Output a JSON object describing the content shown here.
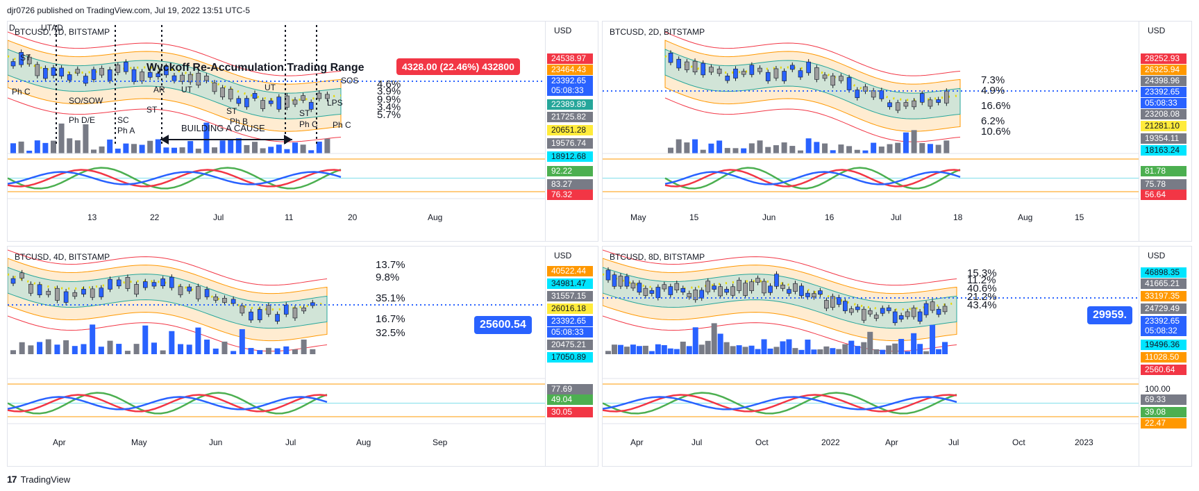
{
  "header": {
    "publish_line": "djr0726 published on TradingView.com, Jul 19, 2022 13:51 UTC-5"
  },
  "footer": {
    "brand": "TradingView",
    "logo_glyph": "17"
  },
  "axis_currency": "USD",
  "colors": {
    "blue": "#2962ff",
    "red": "#f23645",
    "green": "#00c853",
    "orange": "#ff9800",
    "yellow": "#ffeb3b",
    "teal": "#26c6da",
    "purple": "#7b1fa2"
  },
  "panels": {
    "p1": {
      "symbol": "BTCUSD, 1D, BITSTAMP",
      "price_labels": [
        {
          "v": "24538.97",
          "c": "#f23645"
        },
        {
          "v": "23464.43",
          "c": "#ff9800"
        },
        {
          "v": "23392.65",
          "c": "#2962ff"
        },
        {
          "v": "05:08:33",
          "c": "#2962ff"
        },
        {
          "v": "22389.89",
          "c": "#26a69a"
        },
        {
          "v": "21725.82",
          "c": "#787b86"
        },
        {
          "v": "20651.28",
          "c": "#ffeb3b"
        },
        {
          "v": "19576.74",
          "c": "#787b86"
        },
        {
          "v": "18912.68",
          "c": "#00e5ff"
        }
      ],
      "osc_labels": [
        {
          "v": "92.22",
          "c": "#4caf50"
        },
        {
          "v": "83.27",
          "c": "#787b86"
        },
        {
          "v": "76.32",
          "c": "#f23645"
        }
      ],
      "time_labels": [
        "13",
        "22",
        "Jul",
        "11",
        "20",
        "Aug"
      ],
      "annotations": [
        "D",
        "UTAD",
        "ST",
        "Ph C",
        "SO/SOW",
        "Ph D/E",
        "SC",
        "Ph A",
        "ST",
        "AR",
        "UT",
        "ST",
        "Ph B",
        "UT",
        "ST",
        "Ph C",
        "LPS",
        "SOS",
        "Ph C",
        "BUILDING A CAUSE"
      ],
      "title_note": "Wyckoff Re-Accumulation Trading Range",
      "badge": "4328.00 (22.46%) 432800",
      "pcts": [
        "4.6%",
        "3.9%",
        "9.9%",
        "3.4%",
        "5.7%"
      ]
    },
    "p2": {
      "symbol": "BTCUSD, 2D, BITSTAMP",
      "price_labels": [
        {
          "v": "28252.93",
          "c": "#f23645"
        },
        {
          "v": "26325.94",
          "c": "#ff9800"
        },
        {
          "v": "24398.96",
          "c": "#787b86"
        },
        {
          "v": "23392.65",
          "c": "#2962ff"
        },
        {
          "v": "05:08:33",
          "c": "#2962ff"
        },
        {
          "v": "23208.08",
          "c": "#787b86"
        },
        {
          "v": "21281.10",
          "c": "#ffeb3b"
        },
        {
          "v": "19354.11",
          "c": "#787b86"
        },
        {
          "v": "18163.24",
          "c": "#00e5ff"
        }
      ],
      "osc_labels": [
        {
          "v": "81.78",
          "c": "#4caf50"
        },
        {
          "v": "75.78",
          "c": "#787b86"
        },
        {
          "v": "56.64",
          "c": "#f23645"
        }
      ],
      "time_labels": [
        "May",
        "15",
        "Jun",
        "16",
        "Jul",
        "18",
        "Aug",
        "15"
      ],
      "pcts": [
        "7.3%",
        "4.9%",
        "16.6%",
        "6.2%",
        "10.6%"
      ]
    },
    "p3": {
      "symbol": "BTCUSD, 4D, BITSTAMP",
      "price_labels": [
        {
          "v": "40522.44",
          "c": "#ff9800"
        },
        {
          "v": "34981.47",
          "c": "#00e5ff"
        },
        {
          "v": "31557.15",
          "c": "#787b86"
        },
        {
          "v": "26016.18",
          "c": "#ffeb3b"
        },
        {
          "v": "23392.65",
          "c": "#2962ff"
        },
        {
          "v": "05:08:33",
          "c": "#2962ff"
        },
        {
          "v": "20475.21",
          "c": "#787b86"
        },
        {
          "v": "17050.89",
          "c": "#00e5ff"
        }
      ],
      "osc_labels": [
        {
          "v": "77.69",
          "c": "#787b86"
        },
        {
          "v": "49.04",
          "c": "#4caf50"
        },
        {
          "v": "30.05",
          "c": "#f23645"
        }
      ],
      "time_labels": [
        "Apr",
        "May",
        "Jun",
        "Jul",
        "Aug",
        "Sep"
      ],
      "badge": "25600.54",
      "pcts": [
        "13.7%",
        "9.8%",
        "35.1%",
        "16.7%",
        "32.5%"
      ]
    },
    "p4": {
      "symbol": "BTCUSD, 8D, BITSTAMP",
      "price_labels": [
        {
          "v": "46898.35",
          "c": "#00e5ff"
        },
        {
          "v": "41665.21",
          "c": "#787b86"
        },
        {
          "v": "33197.35",
          "c": "#ff9800"
        },
        {
          "v": "24729.49",
          "c": "#787b86"
        },
        {
          "v": "23392.65",
          "c": "#2962ff"
        },
        {
          "v": "05:08:32",
          "c": "#2962ff"
        },
        {
          "v": "19496.36",
          "c": "#00e5ff"
        },
        {
          "v": "11028.50",
          "c": "#ff9800"
        },
        {
          "v": "2560.64",
          "c": "#f23645"
        }
      ],
      "osc_labels": [
        {
          "v": "100.00",
          "c": "#ffffff"
        },
        {
          "v": "69.33",
          "c": "#787b86"
        },
        {
          "v": "39.08",
          "c": "#4caf50"
        },
        {
          "v": "22.47",
          "c": "#ff9800"
        }
      ],
      "time_labels": [
        "Apr",
        "Jul",
        "Oct",
        "2022",
        "Apr",
        "Jul",
        "Oct",
        "2023"
      ],
      "badge": "29959.",
      "pcts": [
        "15.3%",
        "11.2%",
        "40.6%",
        "21.2%",
        "43.4%"
      ]
    }
  }
}
